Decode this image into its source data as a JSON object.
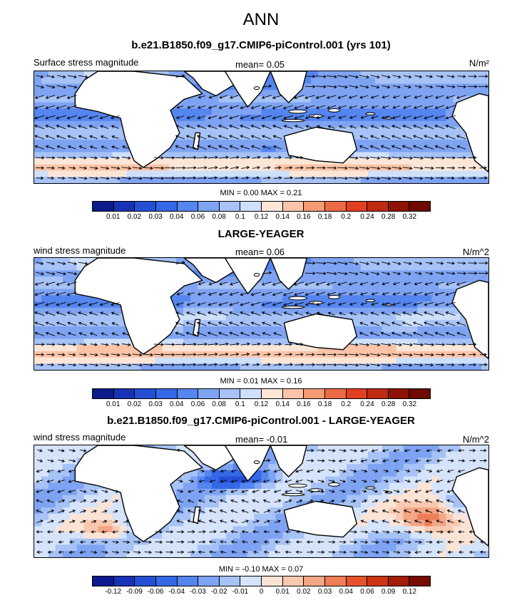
{
  "figure": {
    "title": "ANN"
  },
  "panels": [
    {
      "title": "b.e21.B1850.f09_g17.CMIP6-piControl.001 (yrs 101)",
      "label": "Surface stress magnitude",
      "mean_text": "mean=  0.05",
      "units": "N/m²",
      "stats_text": "MIN =  0.00 MAX =  0.21",
      "colorbar": {
        "labels": [
          "0.01",
          "0.02",
          "0.03",
          "0.04",
          "0.06",
          "0.08",
          "0.1",
          "0.12",
          "0.14",
          "0.16",
          "0.18",
          "0.2",
          "0.24",
          "0.28",
          "0.32"
        ],
        "colors": [
          "#0b1a8c",
          "#1733b5",
          "#2350d4",
          "#3568e6",
          "#5585ee",
          "#7ea3f2",
          "#a6c2f6",
          "#cfe0fb",
          "#fde6d8",
          "#fbc4a8",
          "#f59a74",
          "#ee6a45",
          "#e0401f",
          "#bf2a10",
          "#8f1304",
          "#6e0a00"
        ]
      },
      "chart_data": {
        "type": "heatmap",
        "title": "b.e21.B1850.f09_g17.CMIP6-piControl.001 (yrs 101)",
        "variable": "Surface stress magnitude",
        "units": "N/m²",
        "mean": 0.05,
        "min": 0.0,
        "max": 0.21,
        "levels": [
          0.01,
          0.02,
          0.03,
          0.04,
          0.06,
          0.08,
          0.1,
          0.12,
          0.14,
          0.16,
          0.18,
          0.2,
          0.24,
          0.28,
          0.32
        ],
        "overlay": "wind stress vectors"
      }
    },
    {
      "title": "LARGE-YEAGER",
      "label": "wind stress magnitude",
      "mean_text": "mean=  0.06",
      "units": "N/m^2",
      "stats_text": "MIN =  0.01 MAX =  0.16",
      "colorbar": {
        "labels": [
          "0.01",
          "0.02",
          "0.03",
          "0.04",
          "0.06",
          "0.08",
          "0.1",
          "0.12",
          "0.14",
          "0.16",
          "0.18",
          "0.2",
          "0.24",
          "0.28",
          "0.32"
        ],
        "colors": [
          "#0b1a8c",
          "#1733b5",
          "#2350d4",
          "#3568e6",
          "#5585ee",
          "#7ea3f2",
          "#a6c2f6",
          "#cfe0fb",
          "#fde6d8",
          "#fbc4a8",
          "#f59a74",
          "#ee6a45",
          "#e0401f",
          "#bf2a10",
          "#8f1304",
          "#6e0a00"
        ]
      },
      "chart_data": {
        "type": "heatmap",
        "title": "LARGE-YEAGER",
        "variable": "wind stress magnitude",
        "units": "N/m^2",
        "mean": 0.06,
        "min": 0.01,
        "max": 0.16,
        "levels": [
          0.01,
          0.02,
          0.03,
          0.04,
          0.06,
          0.08,
          0.1,
          0.12,
          0.14,
          0.16,
          0.18,
          0.2,
          0.24,
          0.28,
          0.32
        ],
        "overlay": "wind stress vectors"
      }
    },
    {
      "title": "b.e21.B1850.f09_g17.CMIP6-piControl.001 - LARGE-YEAGER",
      "label": "wind stress magnitude",
      "mean_text": "mean=  -0.01",
      "units": "N/m^2",
      "stats_text": "MIN =  -0.10 MAX =  0.07",
      "colorbar": {
        "labels": [
          "-0.12",
          "-0.09",
          "-0.06",
          "-0.04",
          "-0.03",
          "-0.02",
          "-0.01",
          "0",
          "0.01",
          "0.02",
          "0.03",
          "0.04",
          "0.06",
          "0.09",
          "0.12"
        ],
        "colors": [
          "#0b1a8c",
          "#1733b5",
          "#2350d4",
          "#3568e6",
          "#5585ee",
          "#7ea3f2",
          "#a6c2f6",
          "#d5e3fb",
          "#fbe3d6",
          "#f8c9b0",
          "#f4a585",
          "#ef7d56",
          "#e5532d",
          "#cb3514",
          "#a11d06",
          "#780a00"
        ]
      },
      "chart_data": {
        "type": "heatmap",
        "title": "b.e21.B1850.f09_g17.CMIP6-piControl.001 - LARGE-YEAGER",
        "variable": "wind stress magnitude difference",
        "units": "N/m^2",
        "mean": -0.01,
        "min": -0.1,
        "max": 0.07,
        "levels": [
          -0.12,
          -0.09,
          -0.06,
          -0.04,
          -0.03,
          -0.02,
          -0.01,
          0,
          0.01,
          0.02,
          0.03,
          0.04,
          0.06,
          0.09,
          0.12
        ],
        "overlay": "wind stress difference vectors"
      }
    }
  ]
}
